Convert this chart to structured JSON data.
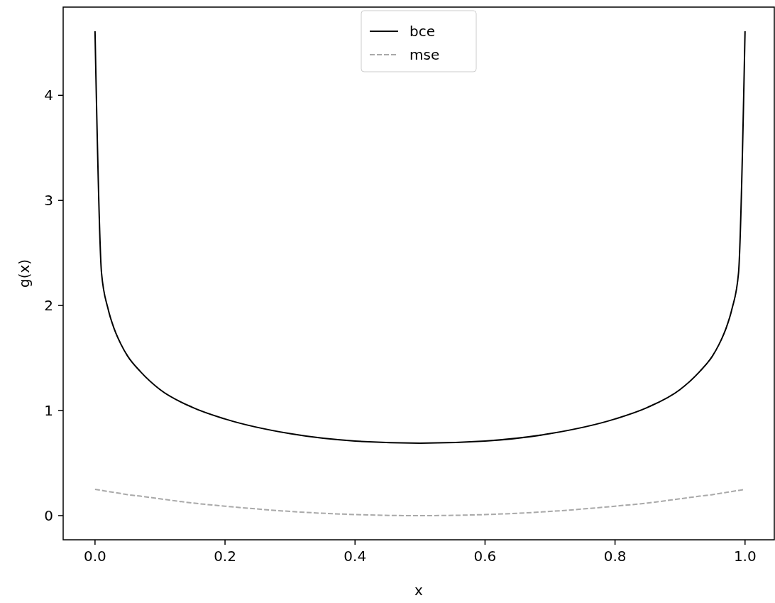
{
  "chart_data": {
    "type": "line",
    "xlabel": "x",
    "ylabel": "g(x)",
    "xlim": [
      -0.049,
      1.045
    ],
    "ylim": [
      -0.23,
      4.84
    ],
    "xticks": [
      {
        "value": 0,
        "label": "0.0"
      },
      {
        "value": 0.2,
        "label": "0.2"
      },
      {
        "value": 0.4,
        "label": "0.4"
      },
      {
        "value": 0.6,
        "label": "0.6"
      },
      {
        "value": 0.8,
        "label": "0.8"
      },
      {
        "value": 1,
        "label": "1.0"
      }
    ],
    "yticks": [
      0,
      1,
      2,
      3,
      4
    ],
    "x": [
      0,
      0.01,
      0.02,
      0.03,
      0.04,
      0.05,
      0.07,
      0.1,
      0.15,
      0.2,
      0.3,
      0.4,
      0.5,
      0.6,
      0.7,
      0.8,
      0.85,
      0.9,
      0.93,
      0.95,
      0.96,
      0.97,
      0.98,
      0.99,
      1
    ],
    "series": [
      {
        "name": "bce",
        "color": "#000000",
        "line_style": "solid",
        "values": [
          4.61,
          2.31,
          1.97,
          1.77,
          1.63,
          1.52,
          1.37,
          1.2,
          1.03,
          0.92,
          0.78,
          0.71,
          0.69,
          0.71,
          0.78,
          0.92,
          1.03,
          1.2,
          1.37,
          1.52,
          1.63,
          1.77,
          1.97,
          2.31,
          4.61
        ]
      },
      {
        "name": "mse",
        "color": "#a9a9a9",
        "line_style": "dashed",
        "values": [
          0.25,
          0.24,
          0.23,
          0.22,
          0.21,
          0.2,
          0.185,
          0.16,
          0.12,
          0.09,
          0.04,
          0.01,
          0,
          0.01,
          0.04,
          0.09,
          0.12,
          0.16,
          0.185,
          0.2,
          0.21,
          0.22,
          0.23,
          0.24,
          0.25
        ]
      }
    ],
    "legend": "top",
    "grid": false
  }
}
